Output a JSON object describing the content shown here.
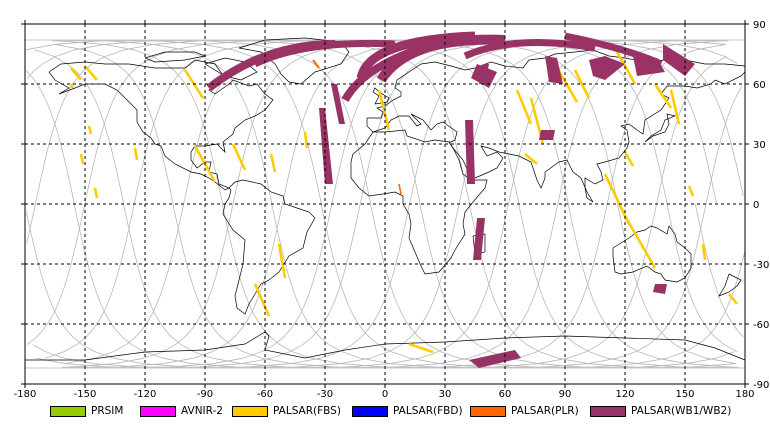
{
  "map": {
    "lon_ticks": [
      "-180",
      "-150",
      "-120",
      "-90",
      "-60",
      "-30",
      "0",
      "30",
      "60",
      "90",
      "120",
      "150",
      "180"
    ],
    "lat_ticks": [
      "90",
      "60",
      "30",
      "0",
      "-30",
      "-60",
      "-90"
    ],
    "lon_values": [
      -180,
      -150,
      -120,
      -90,
      -60,
      -30,
      0,
      30,
      60,
      90,
      120,
      150,
      180
    ],
    "lat_values": [
      90,
      60,
      30,
      0,
      -30,
      -60,
      -90
    ]
  },
  "colors": {
    "prism": "#99cc00",
    "avnir": "#ff00ff",
    "fbs": "#ffcc00",
    "fbd": "#0000ff",
    "plr": "#ff6600",
    "wb": "#993366",
    "coast": "#000000",
    "track": "#b8b8b8"
  },
  "legend": [
    {
      "label": "PRSIM",
      "color": "#99cc00"
    },
    {
      "label": "AVNIR-2",
      "color": "#ff00ff"
    },
    {
      "label": "PALSAR(FBS)",
      "color": "#ffcc00"
    },
    {
      "label": "PALSAR(FBD)",
      "color": "#0000ff"
    },
    {
      "label": "PALSAR(PLR)",
      "color": "#ff6600"
    },
    {
      "label": "PALSAR(WB1/WB2)",
      "color": "#993366"
    }
  ]
}
